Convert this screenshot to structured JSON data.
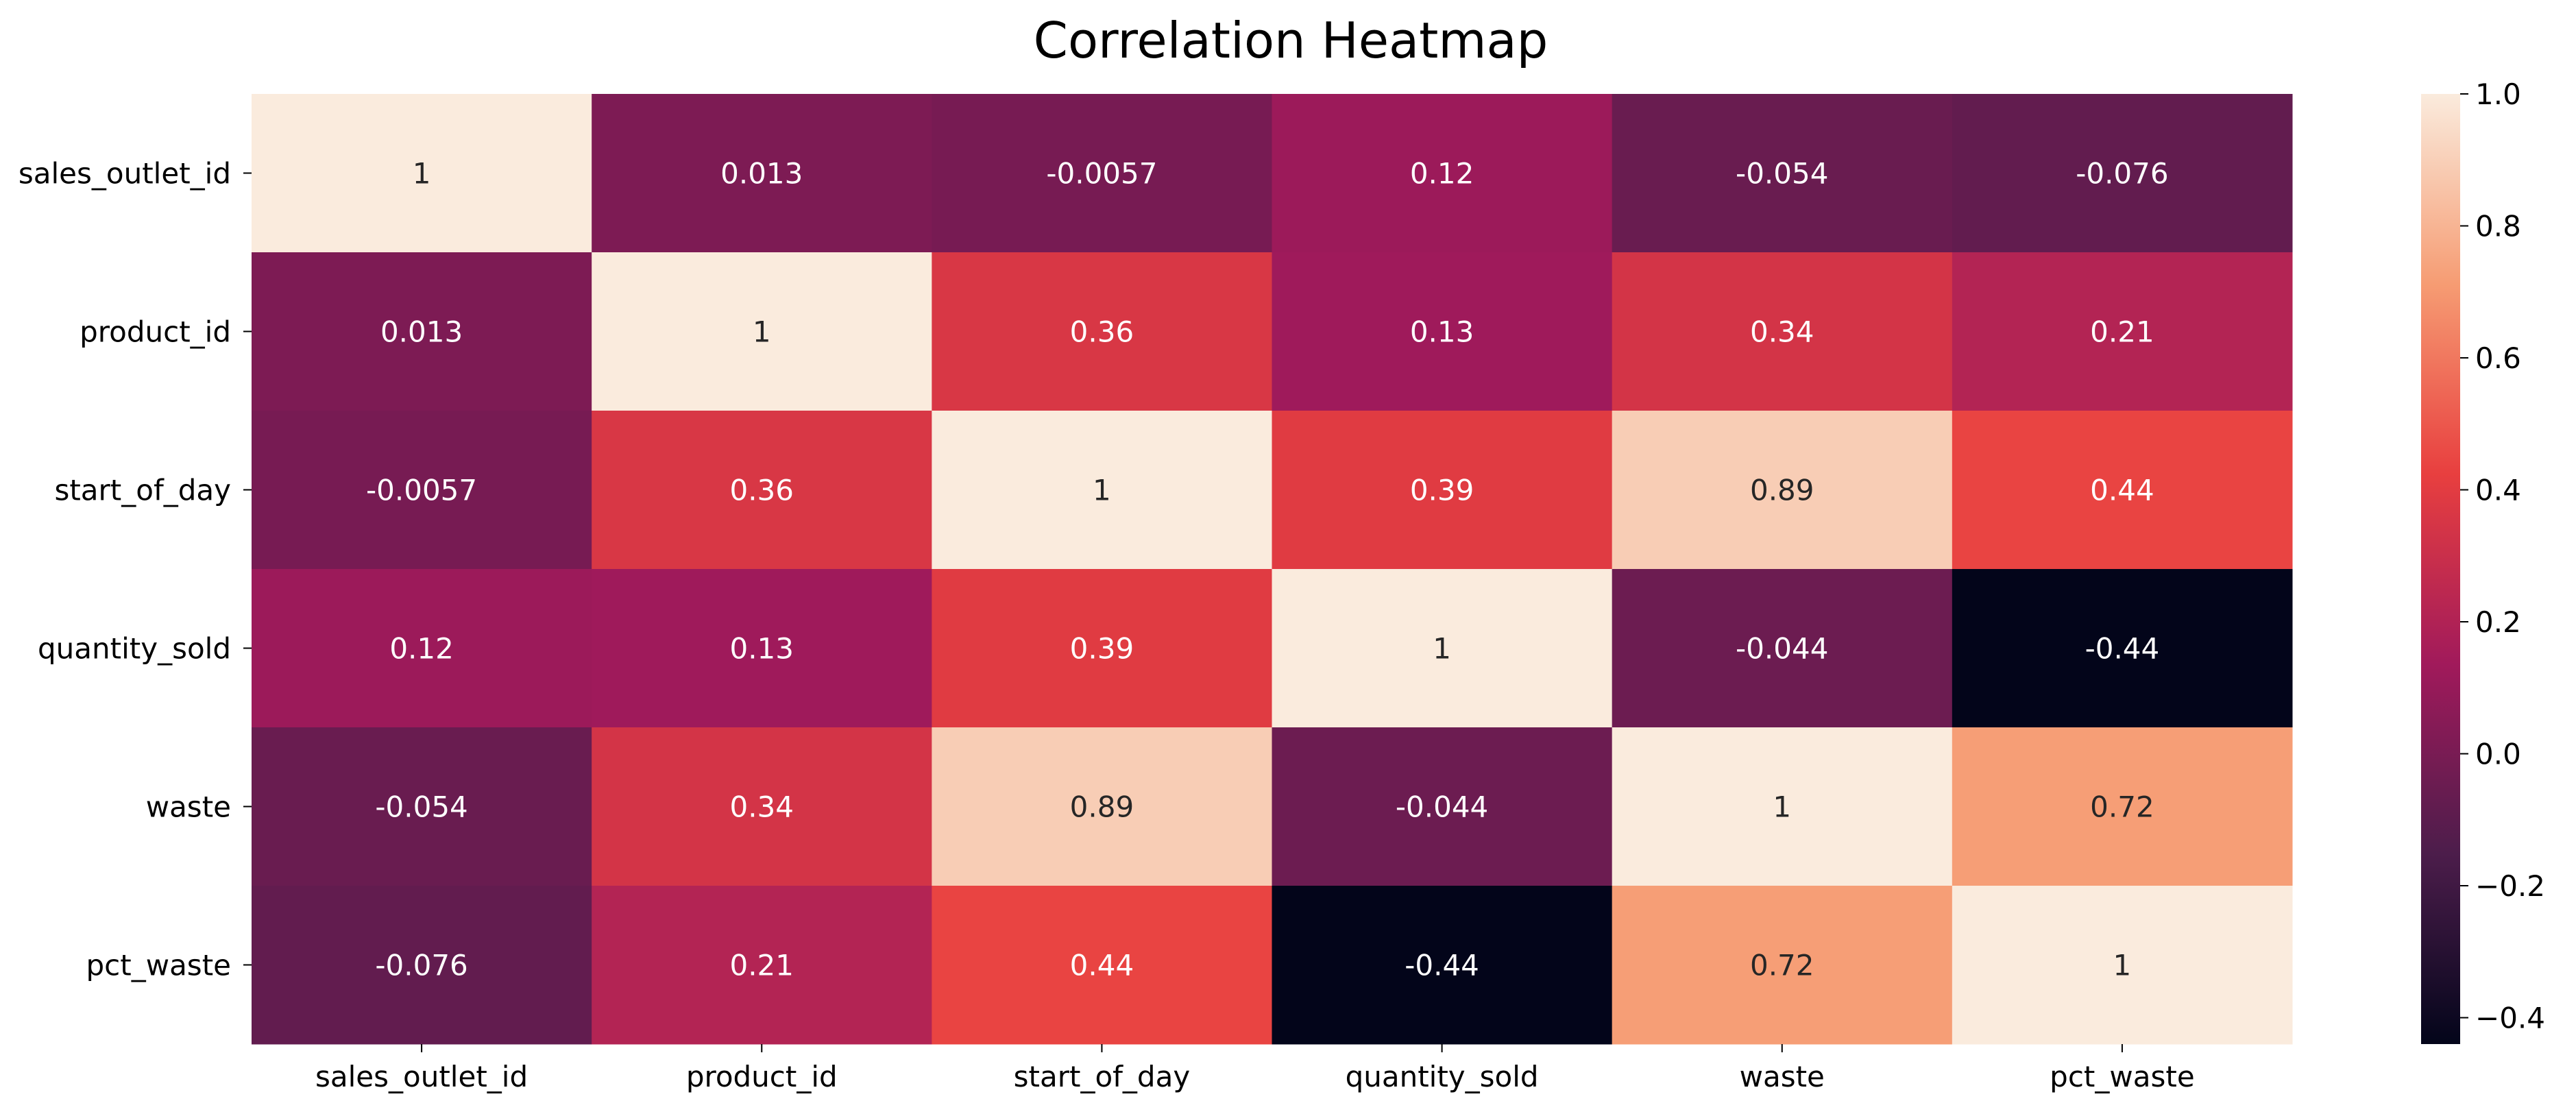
{
  "chart_data": {
    "type": "heatmap",
    "title": "Correlation Heatmap",
    "xlabel": "",
    "ylabel": "",
    "x_categories": [
      "sales_outlet_id",
      "product_id",
      "start_of_day",
      "quantity_sold",
      "waste",
      "pct_waste"
    ],
    "y_categories": [
      "sales_outlet_id",
      "product_id",
      "start_of_day",
      "quantity_sold",
      "waste",
      "pct_waste"
    ],
    "values": [
      [
        1,
        0.013,
        -0.0057,
        0.12,
        -0.054,
        -0.076
      ],
      [
        0.013,
        1,
        0.36,
        0.13,
        0.34,
        0.21
      ],
      [
        -0.0057,
        0.36,
        1,
        0.39,
        0.89,
        0.44
      ],
      [
        0.12,
        0.13,
        0.39,
        1,
        -0.044,
        -0.44
      ],
      [
        -0.054,
        0.34,
        0.89,
        -0.044,
        1,
        0.72
      ],
      [
        -0.076,
        0.21,
        0.44,
        -0.44,
        0.72,
        1
      ]
    ],
    "annotations": [
      [
        "1",
        "0.013",
        "-0.0057",
        "0.12",
        "-0.054",
        "-0.076"
      ],
      [
        "0.013",
        "1",
        "0.36",
        "0.13",
        "0.34",
        "0.21"
      ],
      [
        "-0.0057",
        "0.36",
        "1",
        "0.39",
        "0.89",
        "0.44"
      ],
      [
        "0.12",
        "0.13",
        "0.39",
        "1",
        "-0.044",
        "-0.44"
      ],
      [
        "-0.054",
        "0.34",
        "0.89",
        "-0.044",
        "1",
        "0.72"
      ],
      [
        "-0.076",
        "0.21",
        "0.44",
        "-0.44",
        "0.72",
        "1"
      ]
    ],
    "colorbar": {
      "vmin": -0.44,
      "vmax": 1.0,
      "ticks": [
        1.0,
        0.8,
        0.6,
        0.4,
        0.2,
        0.0,
        -0.2,
        -0.4
      ],
      "tick_labels": [
        "1.0",
        "0.8",
        "0.6",
        "0.4",
        "0.2",
        "0.0",
        "−0.2",
        "−0.4"
      ],
      "colormap": "rocket",
      "stops": [
        "#03051a",
        "#4c1d4b",
        "#a11a5b",
        "#e83f3f",
        "#f69c73",
        "#faebdd"
      ]
    },
    "grid": false,
    "legend": "colorbar-right"
  }
}
